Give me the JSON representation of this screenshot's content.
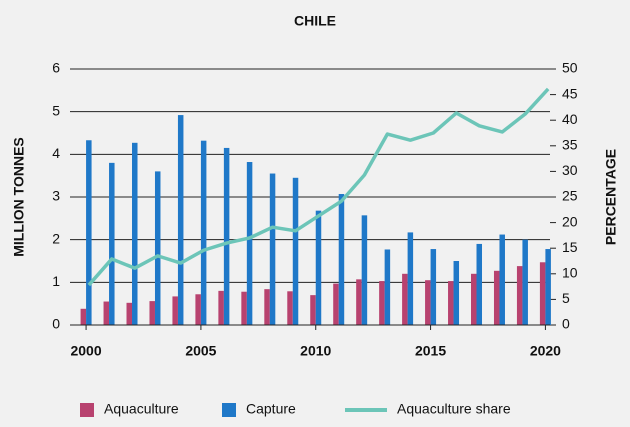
{
  "chart_data": {
    "type": "bar",
    "title": "CHILE",
    "y_label": "MILLION TONNES",
    "y2_label": "PERCENTAGE",
    "x": [
      2000,
      2001,
      2002,
      2003,
      2004,
      2005,
      2006,
      2007,
      2008,
      2009,
      2010,
      2011,
      2012,
      2013,
      2014,
      2015,
      2016,
      2017,
      2018,
      2019,
      2020
    ],
    "series": [
      {
        "name": "Aquaculture",
        "type": "bar",
        "color": "#b8426f",
        "values": [
          0.38,
          0.55,
          0.52,
          0.56,
          0.67,
          0.72,
          0.8,
          0.78,
          0.84,
          0.79,
          0.7,
          0.97,
          1.07,
          1.03,
          1.2,
          1.05,
          1.03,
          1.2,
          1.27,
          1.38,
          1.47
        ]
      },
      {
        "name": "Capture",
        "type": "bar",
        "color": "#1f78c8",
        "values": [
          4.33,
          3.8,
          4.27,
          3.6,
          4.92,
          4.32,
          4.15,
          3.82,
          3.55,
          3.45,
          2.68,
          3.07,
          2.57,
          1.77,
          2.17,
          1.78,
          1.5,
          1.9,
          2.12,
          2.0,
          1.78
        ]
      },
      {
        "name": "Aquaculture share",
        "type": "line",
        "axis": "y2",
        "color": "#6cc5b8",
        "values": [
          7.8,
          12.9,
          11.1,
          13.5,
          12.1,
          14.6,
          16,
          17,
          19.1,
          18.4,
          21.3,
          24.2,
          29.3,
          37.3,
          36.1,
          37.5,
          41.4,
          38.9,
          37.7,
          41.2,
          46.1
        ]
      }
    ],
    "xlim": [
      1999.3,
      2020.2
    ],
    "xticks": [
      2000,
      2005,
      2010,
      2015,
      2020
    ],
    "ylim": [
      0,
      6
    ],
    "yticks": [
      0,
      1,
      2,
      3,
      4,
      5,
      6
    ],
    "y2lim": [
      0,
      50
    ],
    "y2ticks": [
      0,
      5,
      10,
      15,
      20,
      25,
      30,
      35,
      40,
      45,
      50
    ],
    "grid": true,
    "legend": "bottom"
  }
}
